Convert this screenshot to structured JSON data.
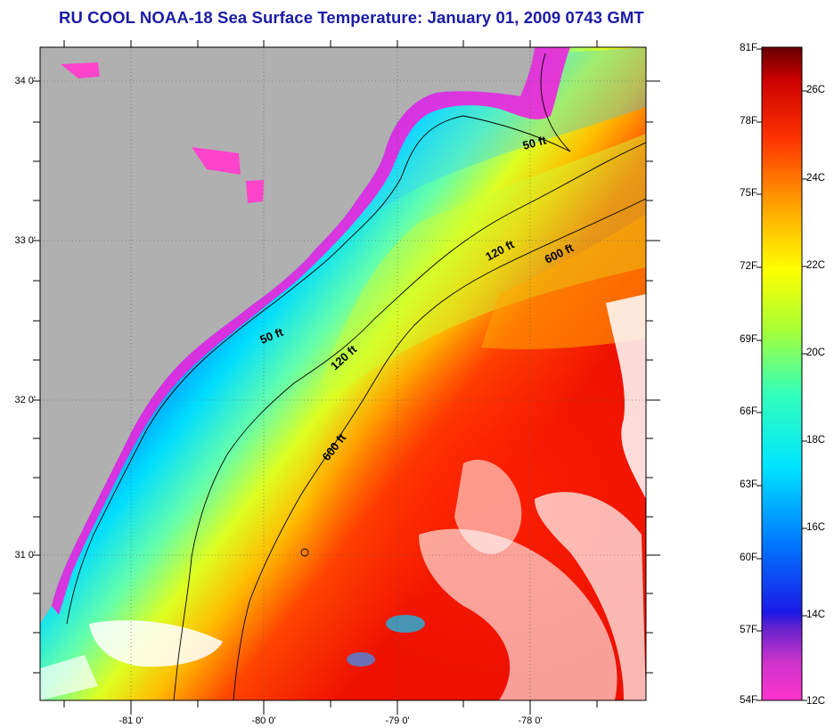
{
  "title": "RU COOL  NOAA-18  Sea Surface Temperature:  January 01, 2009 0743 GMT",
  "map": {
    "y_axis_labels": [
      "34 0'",
      "33 0'",
      "32 0'",
      "31 0'"
    ],
    "x_axis_labels": [
      "-81 0'",
      "-80 0'",
      "-79 0'",
      "-78 0'"
    ],
    "isobath_labels": {
      "ft50_upper": "50 ft",
      "ft50_lower": "50 ft",
      "ft120_upper": "120 ft",
      "ft120_lower": "120 ft",
      "ft600_upper": "600 ft",
      "ft600_lower": "600 ft"
    },
    "colors": {
      "land": "#b0b0b0",
      "cloud": "#ffffff"
    }
  },
  "colorbar": {
    "fahrenheit_labels": [
      "81F",
      "78F",
      "75F",
      "72F",
      "69F",
      "66F",
      "63F",
      "60F",
      "57F",
      "54F"
    ],
    "celsius_labels": [
      "26C",
      "24C",
      "22C",
      "20C",
      "18C",
      "16C",
      "14C",
      "12C"
    ],
    "colors_bottom_to_top": [
      "#ff33cc",
      "#9933cc",
      "#2a1fd0",
      "#0066ff",
      "#00ccff",
      "#33ffcc",
      "#99ff33",
      "#ffff00",
      "#ffaa00",
      "#ff3300",
      "#cc0000",
      "#660000"
    ]
  }
}
